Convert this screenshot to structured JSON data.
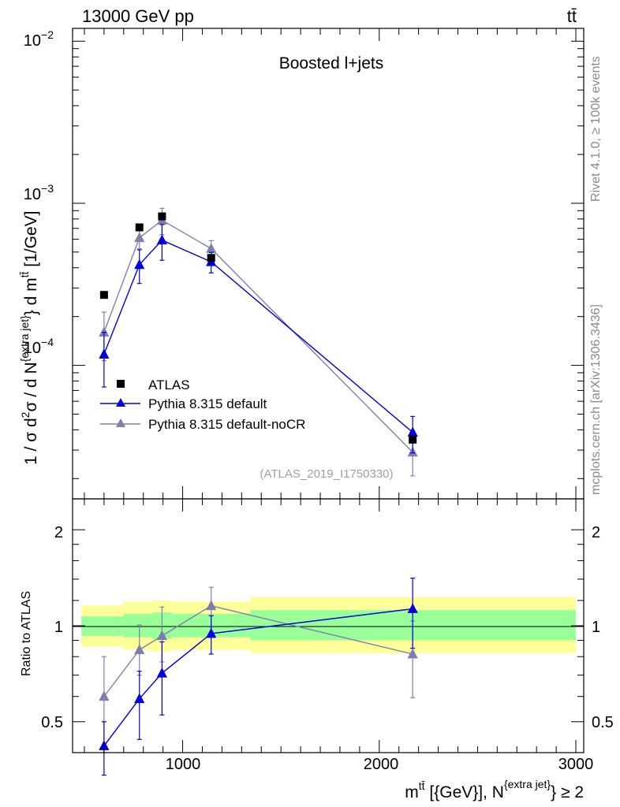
{
  "header": {
    "process": "13000 GeV pp",
    "channel": "tt̄"
  },
  "side": {
    "rivet": "Rivet 4.1.0, ≥ 100k events",
    "mcplots": "mcplots.cern.ch [arXiv:1306.3436]"
  },
  "chart_data": [
    {
      "type": "scatter",
      "title": "Boosted l+jets",
      "analysis_id": "(ATLAS_2019_I1750330)",
      "yscale": "log",
      "ylim": [
        1.5e-05,
        0.012
      ],
      "xlim": [
        440,
        3040
      ],
      "ylabel": {
        "main": "1 / σ d",
        "sup1": "2",
        "mid": "σ / d N",
        "sup2": "{extra jet}",
        "end": "} d m",
        "sup3": "tt̄",
        "unit": " [1/GeV]"
      },
      "yticks": [
        {
          "value": 0.0001,
          "base": "10",
          "exp": "−4"
        },
        {
          "value": 0.001,
          "base": "10",
          "exp": "−3"
        },
        {
          "value": 0.01,
          "base": "10",
          "exp": "−2"
        }
      ],
      "legend": [
        {
          "label": "ATLAS",
          "series": "data"
        },
        {
          "label": "Pythia 8.315 default",
          "series": "default"
        },
        {
          "label": "Pythia 8.315 default-noCR",
          "series": "noCR"
        }
      ],
      "data": {
        "x": [
          600,
          780,
          895,
          1145,
          2170
        ],
        "y": [
          0.000272,
          0.00071,
          0.00083,
          0.00046,
          3.48e-05
        ],
        "yerr": [
          6e-06,
          2e-05,
          2e-05,
          1e-05,
          1.8e-06
        ]
      },
      "series": [
        {
          "name": "Pythia 8.315 default",
          "key": "default",
          "color": "#0000dd",
          "x": [
            600,
            780,
            895,
            1145,
            2170
          ],
          "y": [
            0.000117,
            0.000418,
            0.000592,
            0.000435,
            3.86e-05
          ],
          "ylo": [
            7.35e-05,
            0.00032,
            0.000445,
            0.000372,
            2.88e-05
          ],
          "yhi": [
            0.00016,
            0.000516,
            0.000739,
            0.000498,
            4.84e-05
          ]
        },
        {
          "name": "Pythia 8.315 default-noCR",
          "key": "noCR",
          "color": "#7e7eb0",
          "x": [
            600,
            780,
            895,
            1145,
            2170
          ],
          "y": [
            0.00016,
            0.000612,
            0.000786,
            0.000525,
            2.91e-05
          ],
          "ylo": [
            0.000107,
            0.000524,
            0.000641,
            0.000462,
            2.08e-05
          ],
          "yhi": [
            0.000213,
            0.0007,
            0.000931,
            0.000588,
            3.74e-05
          ]
        }
      ]
    },
    {
      "type": "scatter",
      "ylabel": "Ratio to ATLAS",
      "yscale": "log",
      "ylim": [
        0.4,
        2.5
      ],
      "xlim": [
        440,
        3040
      ],
      "xlabel": {
        "main": "m",
        "sup1": "tt̄",
        "mid": " [{GeV}], N",
        "sup2": "{extra jet}",
        "end": "} ≥ 2"
      },
      "xticks": [
        {
          "value": 1000,
          "label": "1000"
        },
        {
          "value": 2000,
          "label": "2000"
        },
        {
          "value": 3000,
          "label": "3000"
        }
      ],
      "yticks": [
        {
          "value": 0.5,
          "label": "0.5"
        },
        {
          "value": 1,
          "label": "1"
        },
        {
          "value": 2,
          "label": "2"
        }
      ],
      "bands": [
        {
          "x0": 485,
          "x1": 700,
          "yellow": [
            0.86,
            1.16
          ],
          "green": [
            0.93,
            1.07
          ]
        },
        {
          "x0": 700,
          "x1": 845,
          "yellow": [
            0.84,
            1.19
          ],
          "green": [
            0.92,
            1.09
          ]
        },
        {
          "x0": 845,
          "x1": 945,
          "yellow": [
            0.83,
            1.2
          ],
          "green": [
            0.91,
            1.1
          ]
        },
        {
          "x0": 945,
          "x1": 1345,
          "yellow": [
            0.84,
            1.19
          ],
          "green": [
            0.92,
            1.09
          ]
        },
        {
          "x0": 1345,
          "x1": 3000,
          "yellow": [
            0.82,
            1.23
          ],
          "green": [
            0.9,
            1.12
          ]
        }
      ],
      "series": [
        {
          "name": "Pythia 8.315 default",
          "key": "default",
          "color": "#0000dd",
          "x": [
            600,
            780,
            895,
            1145,
            2170
          ],
          "y": [
            0.42,
            0.59,
            0.71,
            0.945,
            1.13
          ],
          "ylo": [
            0.34,
            0.44,
            0.525,
            0.815,
            0.85
          ],
          "yhi": [
            0.5,
            0.72,
            0.89,
            1.075,
            1.41
          ]
        },
        {
          "name": "Pythia 8.315 default-noCR",
          "key": "noCR",
          "color": "#7e7eb0",
          "x": [
            600,
            780,
            895,
            1145,
            2170
          ],
          "y": [
            0.6,
            0.84,
            0.93,
            1.155,
            0.815
          ],
          "ylo": [
            0.4,
            0.7,
            0.77,
            0.99,
            0.595
          ],
          "yhi": [
            0.8,
            1.005,
            1.145,
            1.32,
            1.035
          ]
        }
      ]
    }
  ]
}
